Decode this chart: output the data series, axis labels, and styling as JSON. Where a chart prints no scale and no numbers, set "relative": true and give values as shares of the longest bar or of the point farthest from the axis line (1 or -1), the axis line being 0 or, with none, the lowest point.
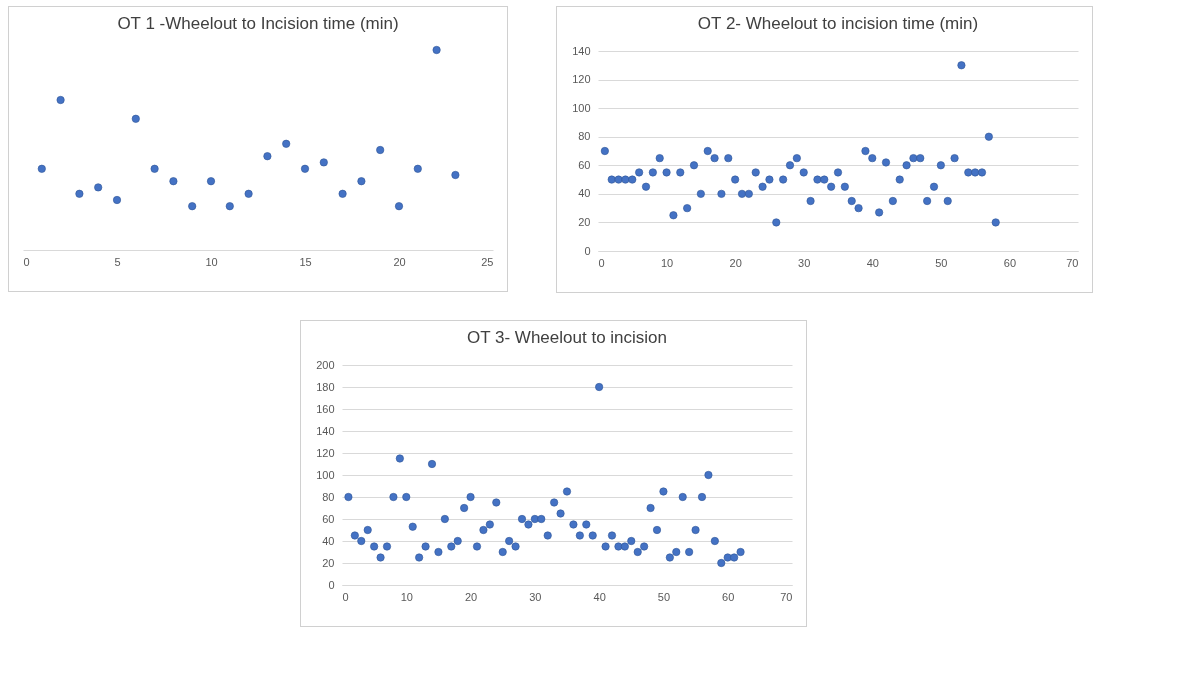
{
  "chart_data": [
    {
      "type": "scatter",
      "title": "OT 1 -Wheelout to Incision time (min)",
      "relative": true,
      "marker": "circle",
      "x": [
        1,
        2,
        3,
        4,
        5,
        6,
        7,
        8,
        9,
        10,
        11,
        12,
        13,
        14,
        15,
        16,
        17,
        18,
        19,
        20,
        21,
        22,
        23
      ],
      "xlim": [
        0,
        25
      ],
      "xticks": [
        0,
        5,
        10,
        15,
        20,
        25
      ],
      "series": [
        {
          "color": "#4472c4",
          "values": [
            0.406,
            0.75,
            0.281,
            0.313,
            0.25,
            0.656,
            0.406,
            0.344,
            0.219,
            0.344,
            0.219,
            0.281,
            0.469,
            0.531,
            0.406,
            0.438,
            0.281,
            0.344,
            0.5,
            0.219,
            0.406,
            1,
            0.375
          ]
        }
      ]
    },
    {
      "type": "scatter",
      "title": "OT 2- Wheelout to incision time (min)",
      "marker": "circle",
      "grid": "y",
      "x": [
        1,
        2,
        3,
        4,
        5,
        6,
        7,
        8,
        9,
        10,
        11,
        12,
        13,
        14,
        15,
        16,
        17,
        18,
        19,
        20,
        21,
        22,
        23,
        24,
        25,
        26,
        27,
        28,
        29,
        30,
        31,
        32,
        33,
        34,
        35,
        36,
        37,
        38,
        39,
        40,
        41,
        42,
        43,
        44,
        45,
        46,
        47,
        48,
        49,
        50,
        51,
        52,
        53,
        54,
        55,
        56,
        57,
        58
      ],
      "xlim": [
        0,
        70
      ],
      "xticks": [
        0,
        10,
        20,
        30,
        40,
        50,
        60,
        70
      ],
      "ylim": [
        0,
        140
      ],
      "yticks": [
        0,
        20,
        40,
        60,
        80,
        100,
        120,
        140
      ],
      "series": [
        {
          "color": "#4472c4",
          "values": [
            70,
            50,
            50,
            50,
            50,
            55,
            45,
            55,
            65,
            55,
            25,
            55,
            30,
            60,
            40,
            70,
            65,
            40,
            65,
            50,
            40,
            40,
            55,
            45,
            50,
            20,
            50,
            60,
            65,
            55,
            35,
            50,
            50,
            45,
            55,
            45,
            35,
            30,
            70,
            65,
            27,
            62,
            35,
            50,
            60,
            65,
            65,
            35,
            45,
            60,
            35,
            65,
            130,
            55,
            55,
            55,
            80,
            20
          ]
        }
      ]
    },
    {
      "type": "scatter",
      "title": "OT 3- Wheelout to incision",
      "marker": "circle",
      "grid": "y",
      "x": [
        1,
        2,
        3,
        4,
        5,
        6,
        7,
        8,
        9,
        10,
        11,
        12,
        13,
        14,
        15,
        16,
        17,
        18,
        19,
        20,
        21,
        22,
        23,
        24,
        25,
        26,
        27,
        28,
        29,
        30,
        31,
        32,
        33,
        34,
        35,
        36,
        37,
        38,
        39,
        40,
        41,
        42,
        43,
        44,
        45,
        46,
        47,
        48,
        49,
        50,
        51,
        52,
        53,
        54,
        55,
        56,
        57,
        58,
        59,
        60,
        61,
        62
      ],
      "xlim": [
        0,
        70
      ],
      "xticks": [
        0,
        10,
        20,
        30,
        40,
        50,
        60,
        70
      ],
      "ylim": [
        0,
        200
      ],
      "yticks": [
        0,
        20,
        40,
        60,
        80,
        100,
        120,
        140,
        160,
        180,
        200
      ],
      "series": [
        {
          "color": "#4472c4",
          "values": [
            80,
            45,
            40,
            50,
            35,
            25,
            35,
            80,
            115,
            80,
            53,
            25,
            35,
            110,
            30,
            60,
            35,
            40,
            70,
            80,
            35,
            50,
            55,
            75,
            30,
            40,
            35,
            60,
            55,
            60,
            60,
            45,
            75,
            65,
            85,
            55,
            45,
            55,
            45,
            180,
            35,
            45,
            35,
            35,
            40,
            30,
            35,
            70,
            50,
            85,
            25,
            30,
            80,
            30,
            50,
            80,
            100,
            40,
            20,
            25,
            25,
            30
          ]
        }
      ]
    }
  ]
}
